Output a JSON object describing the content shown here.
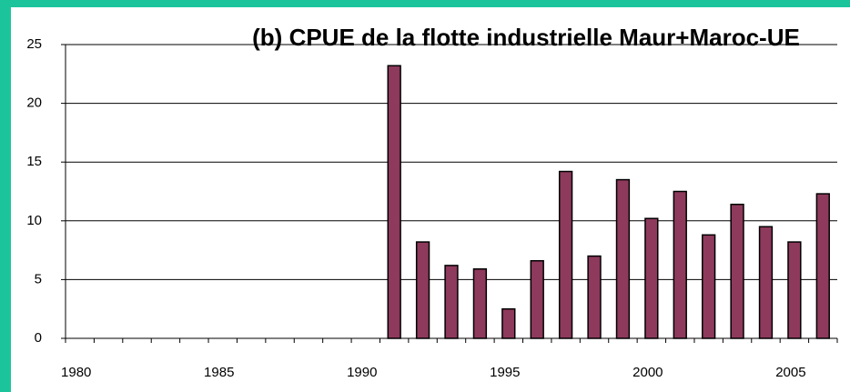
{
  "chart_data": {
    "type": "bar",
    "title": "(b) CPUE de la flotte industrielle Maur+Maroc-UE",
    "categories": [
      "1980",
      null,
      null,
      null,
      null,
      "1985",
      null,
      null,
      null,
      null,
      "1990",
      null,
      null,
      null,
      null,
      "1995",
      null,
      null,
      null,
      null,
      "2000",
      null,
      null,
      null,
      null,
      "2005",
      null
    ],
    "values": [
      null,
      null,
      null,
      null,
      null,
      null,
      null,
      null,
      null,
      null,
      null,
      23.2,
      8.2,
      6.2,
      5.9,
      2.5,
      6.6,
      14.2,
      7.0,
      13.5,
      10.2,
      12.5,
      8.8,
      11.4,
      9.5,
      8.2,
      12.3
    ],
    "color": "#8e3a5c",
    "ylim": [
      0,
      25
    ],
    "yticks": [
      0,
      5,
      10,
      15,
      20,
      25
    ],
    "grid": true
  }
}
